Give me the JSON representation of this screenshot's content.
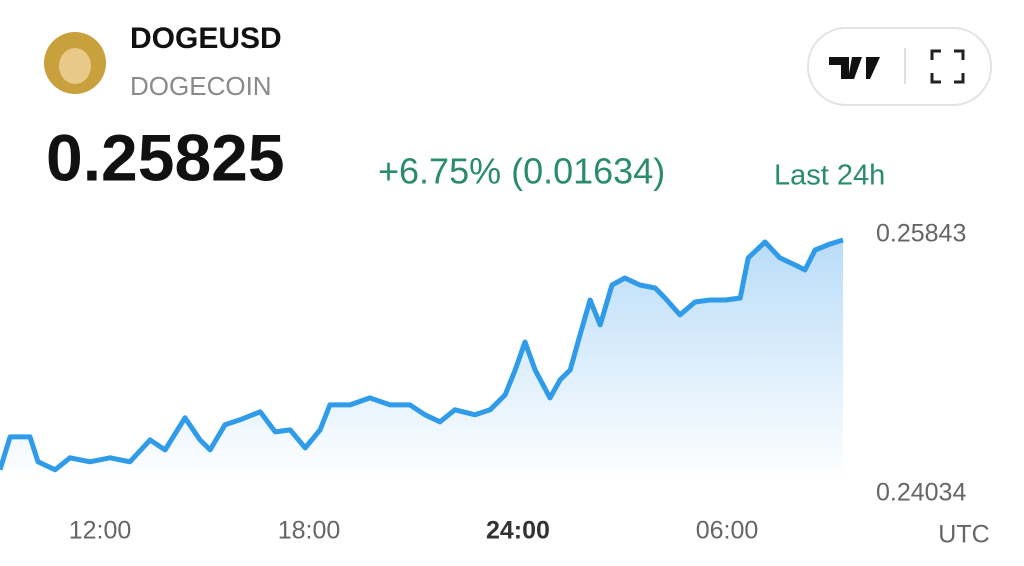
{
  "header": {
    "symbol": "DOGEUSD",
    "name": "DOGECOIN",
    "price": "0.25825",
    "change": "+6.75% (0.01634)",
    "period": "Last 24h"
  },
  "chart_data": {
    "type": "line",
    "x": [
      9.13,
      9.42,
      9.99,
      10.22,
      10.71,
      11.14,
      11.71,
      12.29,
      12.86,
      13.44,
      13.87,
      14.44,
      14.87,
      15.16,
      15.59,
      16.02,
      16.6,
      17.03,
      17.46,
      17.89,
      18.32,
      18.6,
      19.18,
      19.75,
      20.33,
      20.9,
      21.33,
      21.76,
      22.19,
      22.77,
      23.2,
      23.63,
      23.92,
      24.2,
      24.49,
      24.92,
      25.21,
      25.5,
      25.78,
      26.07,
      26.36,
      26.7,
      27.07,
      27.5,
      27.94,
      28.22,
      28.65,
      29.08,
      29.51,
      29.95,
      30.38,
      30.61,
      31.09,
      31.52,
      31.95,
      32.24,
      32.53,
      32.96,
      33.33
    ],
    "values": [
      0.24203,
      0.24433,
      0.24433,
      0.24259,
      0.24203,
      0.24287,
      0.24259,
      0.24287,
      0.24259,
      0.24412,
      0.24342,
      0.24566,
      0.24412,
      0.24342,
      0.24517,
      0.24552,
      0.24608,
      0.24468,
      0.24482,
      0.24356,
      0.24482,
      0.24656,
      0.24656,
      0.24705,
      0.24656,
      0.24656,
      0.24587,
      0.24538,
      0.24622,
      0.24587,
      0.24622,
      0.24726,
      0.24901,
      0.25096,
      0.24901,
      0.24705,
      0.24831,
      0.24901,
      0.25145,
      0.25389,
      0.25215,
      0.25494,
      0.25543,
      0.25494,
      0.25473,
      0.25403,
      0.25285,
      0.25375,
      0.25389,
      0.25389,
      0.25403,
      0.25683,
      0.25794,
      0.25683,
      0.25634,
      0.25599,
      0.25738,
      0.2578,
      0.25808
    ],
    "color": "#2f9be9",
    "xlim": [
      9.13,
      33.33
    ],
    "xticks": [
      {
        "value": 12,
        "label": "12:00"
      },
      {
        "value": 18,
        "label": "18:00"
      },
      {
        "value": 24,
        "label": "24:00"
      },
      {
        "value": 30,
        "label": "06:00"
      }
    ],
    "ylim": [
      0.24034,
      0.25843
    ],
    "yticks": [
      0.24034,
      0.25843
    ],
    "x_label": "UTC"
  }
}
